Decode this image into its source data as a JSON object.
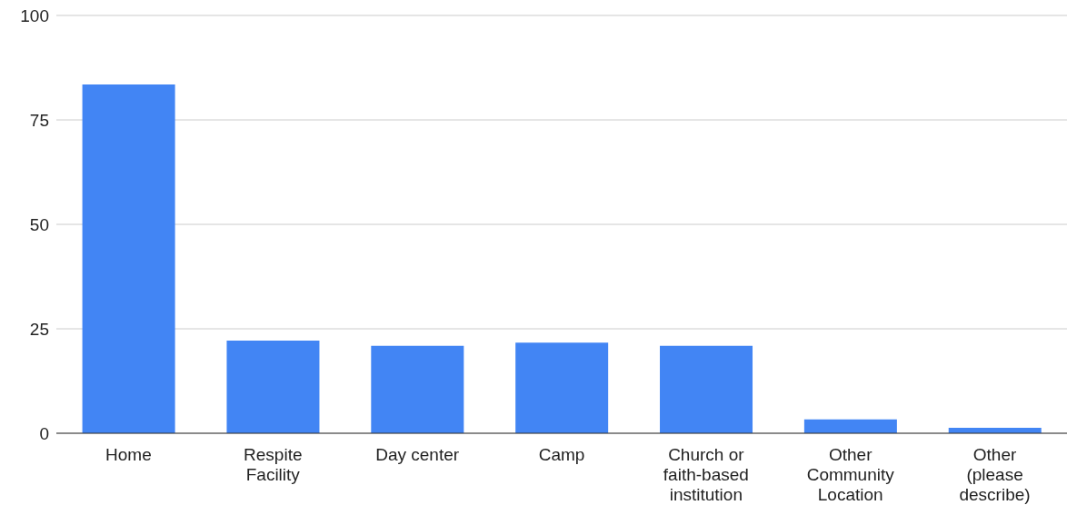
{
  "chart_data": {
    "type": "bar",
    "categories": [
      "Home",
      "Respite Facility",
      "Day center",
      "Camp",
      "Church or faith-based institution",
      "Other Community Location",
      "Other (please describe)"
    ],
    "values": [
      83.5,
      22.2,
      20.9,
      21.7,
      20.9,
      3.3,
      1.3
    ],
    "color": "#4285f4",
    "ylim": [
      0,
      100
    ],
    "yticks": [
      0,
      25,
      50,
      75,
      100
    ],
    "grid": "y",
    "legend": false
  }
}
